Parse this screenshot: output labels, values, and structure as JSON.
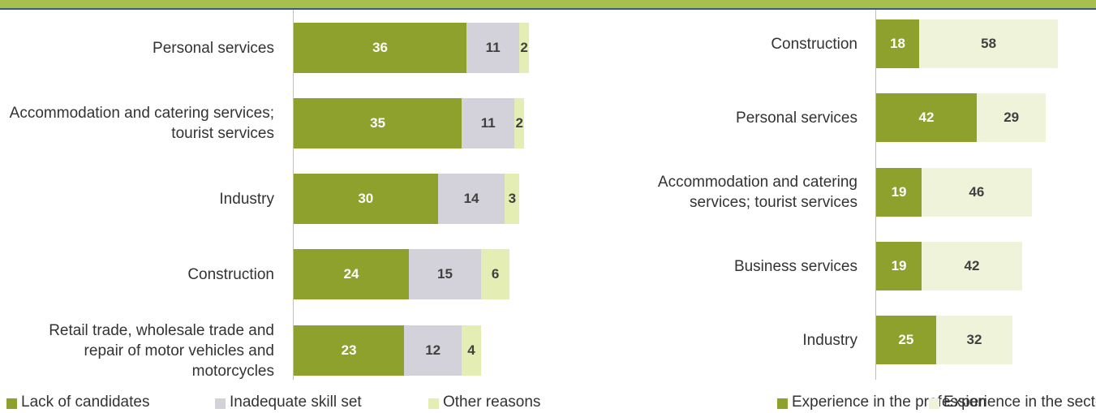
{
  "chart_data": [
    {
      "type": "stacked_bar",
      "categories": [
        "Personal services",
        "Accommodation and catering services; tourist services",
        "Industry",
        "Construction",
        "Retail trade, wholesale trade and repair of motor vehicles and motorcycles"
      ],
      "series": [
        {
          "name": "Lack of candidates",
          "color": "#8ea12c",
          "values": [
            36,
            35,
            30,
            24,
            23
          ]
        },
        {
          "name": "Inadequate skill set",
          "color": "#d3d2db",
          "values": [
            11,
            11,
            14,
            15,
            12
          ]
        },
        {
          "name": "Other reasons",
          "color": "#e4eeb4",
          "values": [
            2,
            2,
            3,
            6,
            4
          ]
        }
      ]
    },
    {
      "type": "stacked_bar",
      "categories": [
        "Construction",
        "Personal services",
        "Accommodation and catering services; tourist services",
        "Business services",
        "Industry"
      ],
      "series": [
        {
          "name": "Experience in the profession",
          "color": "#8ea12c",
          "values": [
            18,
            42,
            19,
            19,
            25
          ]
        },
        {
          "name": "Experience in the sector",
          "color": "#eef3d9",
          "values": [
            58,
            29,
            46,
            42,
            32
          ]
        }
      ]
    }
  ]
}
